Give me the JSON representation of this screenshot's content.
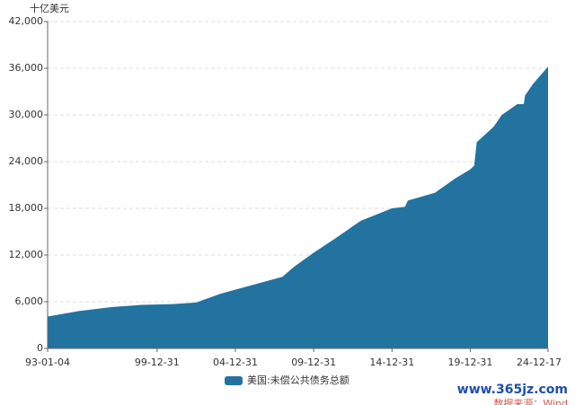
{
  "chart_data": {
    "type": "area",
    "y_label": "十亿美元",
    "x": [
      "93-01-04",
      "95-01-03",
      "97-01-02",
      "99-01-04",
      "00-12-29",
      "02-06-28",
      "04-01-02",
      "06-01-03",
      "08-01-02",
      "08-10-01",
      "09-12-31",
      "11-06-30",
      "13-01-02",
      "14-12-31",
      "15-10-30",
      "16-01-04",
      "17-09-29",
      "18-12-31",
      "19-12-31",
      "20-03-31",
      "20-05-29",
      "21-06-30",
      "22-01-03",
      "23-01-03",
      "23-06-01",
      "23-06-30",
      "24-01-02",
      "24-12-17"
    ],
    "series": [
      {
        "name": "美国:未偿公共债务总额",
        "color": "#22739f",
        "values": [
          4100,
          4800,
          5300,
          5600,
          5700,
          5900,
          7000,
          8100,
          9200,
          10500,
          12300,
          14300,
          16400,
          18000,
          18200,
          19000,
          20000,
          21800,
          23000,
          23500,
          26500,
          28500,
          30000,
          31400,
          31400,
          32500,
          34000,
          36200
        ]
      }
    ],
    "xlim": [
      "93-01-04",
      "24-12-17"
    ],
    "xticks": [
      "93-01-04",
      "99-12-31",
      "04-12-31",
      "09-12-31",
      "14-12-31",
      "19-12-31",
      "24-12-17"
    ],
    "ylim": [
      0,
      42000
    ],
    "yticks": [
      0,
      {
        "value": 6000,
        "label": "6,000"
      },
      {
        "value": 12000,
        "label": "12,000"
      },
      {
        "value": 18000,
        "label": "18,000"
      },
      {
        "value": 24000,
        "label": "24,000"
      },
      {
        "value": 30000,
        "label": "30,000"
      },
      {
        "value": 36000,
        "label": "36,000"
      },
      {
        "value": 42000,
        "label": "42,000"
      }
    ],
    "grid": true
  },
  "watermark": {
    "site": "www.365jz.com",
    "source": "数据来源：Wind"
  }
}
